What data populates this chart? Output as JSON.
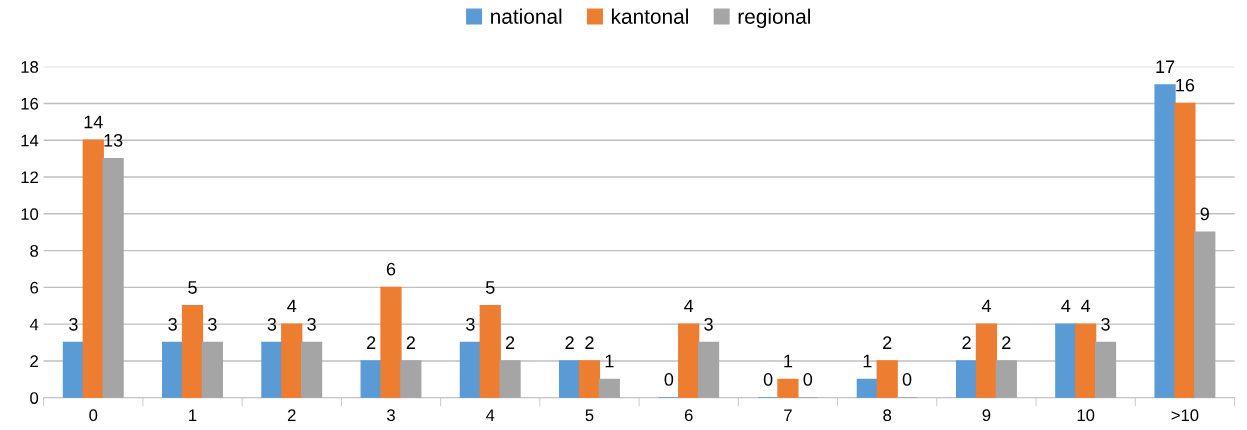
{
  "chart_data": {
    "type": "bar",
    "categories": [
      "0",
      "1",
      "2",
      "3",
      "4",
      "5",
      "6",
      "7",
      "8",
      "9",
      "10",
      ">10"
    ],
    "series": [
      {
        "name": "national",
        "color": "#5b9bd5",
        "values": [
          3,
          3,
          3,
          2,
          3,
          2,
          0,
          0,
          1,
          2,
          4,
          17
        ]
      },
      {
        "name": "kantonal",
        "color": "#ed7d31",
        "values": [
          14,
          5,
          4,
          6,
          5,
          2,
          4,
          1,
          2,
          4,
          4,
          16
        ]
      },
      {
        "name": "regional",
        "color": "#a5a5a5",
        "values": [
          13,
          3,
          3,
          2,
          2,
          1,
          3,
          0,
          0,
          2,
          3,
          9
        ]
      }
    ],
    "ylim": [
      0,
      18
    ],
    "yticks": [
      0,
      2,
      4,
      6,
      8,
      10,
      12,
      14,
      16,
      18
    ],
    "grid": "y",
    "legend": "top",
    "data_labels": true
  }
}
